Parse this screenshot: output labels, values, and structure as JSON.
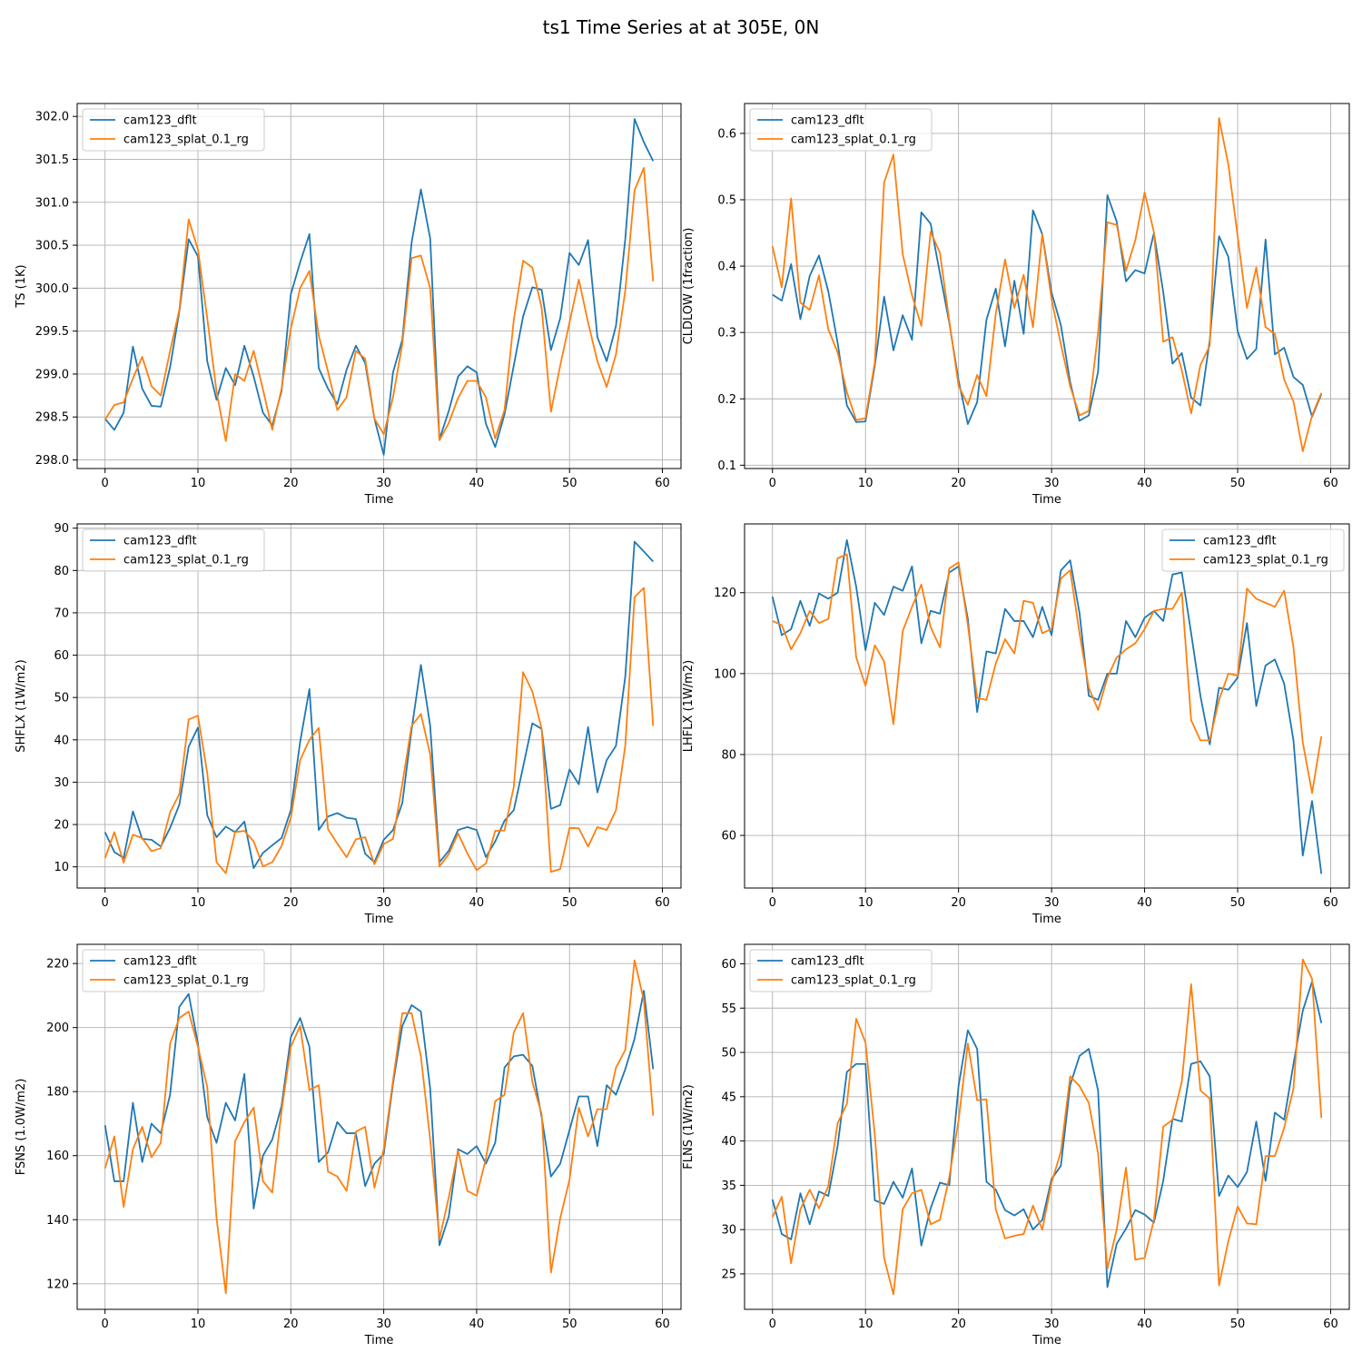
{
  "figure": {
    "title": "ts1 Time Series at at 305E, 0N"
  },
  "colors": {
    "series_0": "#1f77b4",
    "series_1": "#ff7f0e",
    "grid": "#b0b0b0"
  },
  "chart_data": [
    {
      "type": "line",
      "title": "",
      "xlabel": "Time",
      "ylabel": "TS (1K)",
      "xlim": [
        -3,
        62
      ],
      "ylim": [
        297.9,
        302.15
      ],
      "xticks": [
        0,
        10,
        20,
        30,
        40,
        50,
        60
      ],
      "xtick_labels": [
        "0",
        "10",
        "20",
        "30",
        "40",
        "50",
        "60"
      ],
      "yticks": [
        298.0,
        298.5,
        299.0,
        299.5,
        300.0,
        300.5,
        301.0,
        301.5,
        302.0
      ],
      "ytick_labels": [
        "298.0",
        "298.5",
        "299.0",
        "299.5",
        "300.0",
        "300.5",
        "301.0",
        "301.5",
        "302.0"
      ],
      "grid": true,
      "legend": "upper-left",
      "series": [
        {
          "name": "cam123_dflt",
          "values": [
            298.48,
            298.35,
            298.55,
            299.32,
            298.83,
            298.63,
            298.62,
            299.08,
            299.73,
            300.57,
            300.37,
            299.15,
            298.7,
            299.07,
            298.87,
            299.33,
            298.97,
            298.55,
            298.4,
            298.8,
            299.93,
            300.3,
            300.63,
            299.07,
            298.83,
            298.65,
            299.05,
            299.33,
            299.13,
            298.48,
            298.06,
            299.02,
            299.4,
            300.53,
            301.15,
            300.58,
            298.24,
            298.57,
            298.97,
            299.09,
            299.02,
            298.42,
            298.15,
            298.53,
            299.1,
            299.67,
            300.01,
            299.98,
            299.28,
            299.65,
            300.41,
            300.27,
            300.56,
            299.43,
            299.15,
            299.56,
            300.57,
            301.97,
            301.7,
            301.48
          ]
        },
        {
          "name": "cam123_splat_0.1_rg",
          "values": [
            298.47,
            298.64,
            298.67,
            298.95,
            299.2,
            298.86,
            298.75,
            299.27,
            299.75,
            300.8,
            300.45,
            299.65,
            298.8,
            298.22,
            299.0,
            298.92,
            299.27,
            298.82,
            298.35,
            298.83,
            299.53,
            300.0,
            300.2,
            299.45,
            299.03,
            298.58,
            298.73,
            299.27,
            299.18,
            298.48,
            298.3,
            298.73,
            299.35,
            300.35,
            300.38,
            300.0,
            298.23,
            298.43,
            298.72,
            298.92,
            298.92,
            298.73,
            298.25,
            298.58,
            299.63,
            300.32,
            300.24,
            299.77,
            298.56,
            299.1,
            299.6,
            300.1,
            299.6,
            299.15,
            298.85,
            299.23,
            299.97,
            301.14,
            301.4,
            300.08
          ]
        }
      ]
    },
    {
      "type": "line",
      "title": "",
      "xlabel": "Time",
      "ylabel": "CLDLOW (1fraction)",
      "xlim": [
        -3,
        62
      ],
      "ylim": [
        0.095,
        0.645
      ],
      "xticks": [
        0,
        10,
        20,
        30,
        40,
        50,
        60
      ],
      "xtick_labels": [
        "0",
        "10",
        "20",
        "30",
        "40",
        "50",
        "60"
      ],
      "yticks": [
        0.1,
        0.2,
        0.3,
        0.4,
        0.5,
        0.6
      ],
      "ytick_labels": [
        "0.1",
        "0.2",
        "0.3",
        "0.4",
        "0.5",
        "0.6"
      ],
      "grid": true,
      "legend": "upper-left",
      "series": [
        {
          "name": "cam123_dflt",
          "values": [
            0.357,
            0.348,
            0.403,
            0.32,
            0.385,
            0.416,
            0.362,
            0.285,
            0.19,
            0.165,
            0.166,
            0.25,
            0.354,
            0.273,
            0.326,
            0.289,
            0.481,
            0.464,
            0.389,
            0.315,
            0.228,
            0.162,
            0.195,
            0.319,
            0.366,
            0.279,
            0.378,
            0.298,
            0.484,
            0.448,
            0.36,
            0.311,
            0.225,
            0.167,
            0.175,
            0.241,
            0.507,
            0.467,
            0.377,
            0.394,
            0.389,
            0.45,
            0.361,
            0.253,
            0.269,
            0.202,
            0.19,
            0.288,
            0.445,
            0.414,
            0.302,
            0.26,
            0.275,
            0.44,
            0.267,
            0.277,
            0.233,
            0.221,
            0.173,
            0.207
          ]
        },
        {
          "name": "cam123_splat_0.1_rg",
          "values": [
            0.43,
            0.368,
            0.502,
            0.345,
            0.334,
            0.386,
            0.305,
            0.27,
            0.21,
            0.168,
            0.171,
            0.255,
            0.526,
            0.568,
            0.418,
            0.356,
            0.31,
            0.452,
            0.42,
            0.318,
            0.22,
            0.191,
            0.236,
            0.204,
            0.328,
            0.41,
            0.337,
            0.387,
            0.308,
            0.448,
            0.35,
            0.282,
            0.219,
            0.175,
            0.182,
            0.3,
            0.466,
            0.462,
            0.393,
            0.439,
            0.511,
            0.451,
            0.286,
            0.293,
            0.243,
            0.178,
            0.251,
            0.28,
            0.623,
            0.553,
            0.445,
            0.337,
            0.398,
            0.308,
            0.298,
            0.229,
            0.196,
            0.121,
            0.175,
            0.209
          ]
        }
      ]
    },
    {
      "type": "line",
      "title": "",
      "xlabel": "Time",
      "ylabel": "SHFLX (1W/m2)",
      "xlim": [
        -3,
        62
      ],
      "ylim": [
        5,
        91
      ],
      "xticks": [
        0,
        10,
        20,
        30,
        40,
        50,
        60
      ],
      "xtick_labels": [
        "0",
        "10",
        "20",
        "30",
        "40",
        "50",
        "60"
      ],
      "yticks": [
        10,
        20,
        30,
        40,
        50,
        60,
        70,
        80,
        90
      ],
      "ytick_labels": [
        "10",
        "20",
        "30",
        "40",
        "50",
        "60",
        "70",
        "80",
        "90"
      ],
      "grid": true,
      "legend": "upper-left",
      "series": [
        {
          "name": "cam123_dflt",
          "values": [
            18.2,
            13.5,
            12.1,
            23.1,
            16.6,
            16.4,
            14.8,
            19.2,
            24.7,
            38.4,
            42.9,
            22.2,
            17.0,
            19.5,
            18.2,
            20.7,
            9.7,
            13.3,
            15.1,
            16.8,
            23.4,
            39.5,
            52.0,
            18.7,
            21.9,
            22.7,
            21.6,
            21.3,
            13.1,
            11.1,
            16.4,
            18.7,
            25.1,
            42.4,
            57.7,
            43.3,
            11.1,
            13.8,
            18.7,
            19.4,
            18.7,
            12.3,
            16.0,
            20.9,
            23.4,
            33.6,
            43.9,
            42.6,
            23.7,
            24.6,
            33.0,
            29.5,
            43.0,
            27.6,
            35.2,
            38.6,
            54.9,
            86.8,
            84.5,
            82.1
          ]
        },
        {
          "name": "cam123_splat_0.1_rg",
          "values": [
            12.1,
            18.2,
            11.0,
            17.6,
            16.8,
            13.7,
            14.4,
            22.9,
            27.2,
            44.8,
            45.7,
            32.2,
            11.1,
            8.5,
            18.2,
            18.5,
            16.0,
            10.1,
            11.1,
            14.9,
            21.6,
            35.2,
            40.0,
            42.8,
            18.9,
            15.5,
            12.3,
            16.5,
            17.0,
            10.6,
            15.4,
            16.6,
            29.6,
            43.3,
            46.1,
            36.6,
            10.1,
            13.0,
            17.9,
            13.2,
            9.2,
            10.8,
            18.5,
            18.6,
            28.9,
            56.0,
            51.4,
            42.6,
            8.8,
            9.5,
            19.2,
            19.1,
            14.8,
            19.4,
            18.7,
            23.4,
            38.6,
            73.7,
            75.9,
            43.3
          ]
        }
      ]
    },
    {
      "type": "line",
      "title": "",
      "xlabel": "Time",
      "ylabel": "LHFLX (1W/m2)",
      "xlim": [
        -3,
        62
      ],
      "ylim": [
        47,
        137
      ],
      "xticks": [
        0,
        10,
        20,
        30,
        40,
        50,
        60
      ],
      "xtick_labels": [
        "0",
        "10",
        "20",
        "30",
        "40",
        "50",
        "60"
      ],
      "yticks": [
        60,
        80,
        100,
        120
      ],
      "ytick_labels": [
        "60",
        "80",
        "100",
        "120"
      ],
      "grid": true,
      "legend": "upper-right",
      "series": [
        {
          "name": "cam123_dflt",
          "values": [
            119.0,
            109.5,
            111.0,
            118.0,
            111.8,
            119.8,
            118.5,
            120.0,
            133.0,
            121.5,
            105.8,
            117.5,
            114.5,
            121.5,
            120.5,
            126.5,
            107.5,
            115.5,
            114.8,
            125.0,
            126.5,
            113.5,
            90.5,
            105.5,
            105.0,
            116.0,
            113.0,
            113.0,
            109.0,
            116.5,
            109.5,
            125.5,
            128.0,
            115.0,
            94.5,
            93.5,
            100.0,
            100.0,
            113.0,
            109.0,
            113.8,
            115.5,
            113.0,
            124.5,
            125.0,
            110.0,
            94.5,
            82.5,
            96.5,
            96.0,
            99.0,
            112.5,
            92.0,
            102.0,
            103.5,
            97.5,
            83.5,
            55.0,
            68.5,
            50.5
          ]
        },
        {
          "name": "cam123_splat_0.1_rg",
          "values": [
            113.0,
            112.0,
            106.0,
            110.0,
            115.5,
            112.5,
            113.5,
            128.5,
            129.5,
            104.0,
            97.0,
            107.0,
            103.0,
            87.5,
            110.5,
            116.5,
            122.0,
            111.5,
            106.5,
            126.0,
            127.5,
            112.0,
            94.0,
            93.5,
            102.5,
            108.5,
            105.0,
            118.0,
            117.5,
            110.0,
            111.0,
            123.5,
            125.5,
            110.0,
            96.5,
            91.0,
            99.0,
            104.0,
            106.0,
            107.5,
            111.0,
            115.5,
            116.0,
            116.0,
            120.0,
            88.5,
            83.5,
            83.5,
            93.5,
            100.0,
            99.5,
            121.0,
            118.5,
            117.5,
            116.5,
            120.5,
            106.5,
            83.0,
            70.5,
            84.5
          ]
        }
      ]
    },
    {
      "type": "line",
      "title": "",
      "xlabel": "Time",
      "ylabel": "FSNS (1.0W/m2)",
      "xlim": [
        -3,
        62
      ],
      "ylim": [
        112,
        226
      ],
      "xticks": [
        0,
        10,
        20,
        30,
        40,
        50,
        60
      ],
      "xtick_labels": [
        "0",
        "10",
        "20",
        "30",
        "40",
        "50",
        "60"
      ],
      "yticks": [
        120,
        140,
        160,
        180,
        200,
        220
      ],
      "ytick_labels": [
        "120",
        "140",
        "160",
        "180",
        "200",
        "220"
      ],
      "grid": true,
      "legend": "upper-left",
      "series": [
        {
          "name": "cam123_dflt",
          "values": [
            169.5,
            152.0,
            152.0,
            176.5,
            158.0,
            170.0,
            167.0,
            179.0,
            206.5,
            210.5,
            195.0,
            172.0,
            164.0,
            176.5,
            171.0,
            185.5,
            143.5,
            160.0,
            165.0,
            175.5,
            197.0,
            203.0,
            194.0,
            158.0,
            161.0,
            170.5,
            167.0,
            167.0,
            150.5,
            157.5,
            160.5,
            182.5,
            200.5,
            207.0,
            205.0,
            181.0,
            132.0,
            141.0,
            162.0,
            160.5,
            163.0,
            157.5,
            164.0,
            187.5,
            191.0,
            191.5,
            188.0,
            172.0,
            153.5,
            157.5,
            168.0,
            178.5,
            178.5,
            163.0,
            182.0,
            179.0,
            187.0,
            196.5,
            211.5,
            187.0
          ]
        },
        {
          "name": "cam123_splat_0.1_rg",
          "values": [
            156.0,
            166.0,
            144.0,
            162.0,
            169.0,
            159.5,
            164.0,
            195.0,
            203.0,
            205.0,
            194.0,
            181.5,
            140.5,
            117.0,
            164.5,
            170.5,
            175.0,
            152.0,
            148.5,
            174.0,
            194.0,
            200.5,
            180.5,
            182.0,
            155.0,
            153.5,
            149.0,
            167.5,
            169.0,
            150.0,
            162.0,
            183.5,
            204.5,
            204.5,
            191.0,
            165.0,
            134.0,
            147.0,
            161.5,
            149.0,
            147.5,
            159.0,
            177.0,
            179.0,
            198.5,
            204.5,
            183.0,
            173.0,
            123.5,
            140.5,
            152.5,
            175.0,
            166.0,
            174.5,
            174.5,
            187.5,
            193.0,
            221.0,
            208.5,
            172.5
          ]
        }
      ]
    },
    {
      "type": "line",
      "title": "",
      "xlabel": "Time",
      "ylabel": "FLNS (1W/m2)",
      "xlim": [
        -3,
        62
      ],
      "ylim": [
        21,
        62.2
      ],
      "xticks": [
        0,
        10,
        20,
        30,
        40,
        50,
        60
      ],
      "xtick_labels": [
        "0",
        "10",
        "20",
        "30",
        "40",
        "50",
        "60"
      ],
      "yticks": [
        25,
        30,
        35,
        40,
        45,
        50,
        55,
        60
      ],
      "ytick_labels": [
        "25",
        "30",
        "35",
        "40",
        "45",
        "50",
        "55",
        "60"
      ],
      "grid": true,
      "legend": "upper-left",
      "series": [
        {
          "name": "cam123_dflt",
          "values": [
            33.4,
            29.5,
            28.9,
            34.1,
            30.6,
            34.3,
            33.8,
            39.4,
            47.8,
            48.7,
            48.7,
            33.3,
            32.9,
            35.4,
            33.6,
            36.9,
            28.2,
            32.4,
            35.3,
            35.0,
            46.2,
            52.5,
            50.4,
            35.4,
            34.5,
            32.2,
            31.6,
            32.3,
            30.0,
            31.1,
            35.7,
            37.2,
            46.3,
            49.6,
            50.4,
            45.7,
            23.5,
            28.4,
            30.1,
            32.2,
            31.7,
            30.8,
            35.5,
            42.5,
            42.2,
            48.7,
            49.0,
            47.3,
            33.8,
            36.1,
            34.8,
            36.5,
            42.2,
            35.5,
            43.2,
            42.4,
            48.7,
            54.7,
            58.0,
            53.3
          ]
        },
        {
          "name": "cam123_splat_0.1_rg",
          "values": [
            31.4,
            33.7,
            26.2,
            32.3,
            34.5,
            32.4,
            34.9,
            42.0,
            44.2,
            53.8,
            51.1,
            40.7,
            26.8,
            22.7,
            32.3,
            34.1,
            34.5,
            30.6,
            31.1,
            35.9,
            42.3,
            51.0,
            44.6,
            44.7,
            32.3,
            29.0,
            29.3,
            29.5,
            32.7,
            30.0,
            35.3,
            38.8,
            47.3,
            46.2,
            44.3,
            38.6,
            25.6,
            30.0,
            37.0,
            26.6,
            26.8,
            31.1,
            41.6,
            42.4,
            46.7,
            57.7,
            45.7,
            44.8,
            23.7,
            28.7,
            32.6,
            30.7,
            30.6,
            38.3,
            38.3,
            41.5,
            45.9,
            60.5,
            58.3,
            42.6
          ]
        }
      ]
    }
  ]
}
